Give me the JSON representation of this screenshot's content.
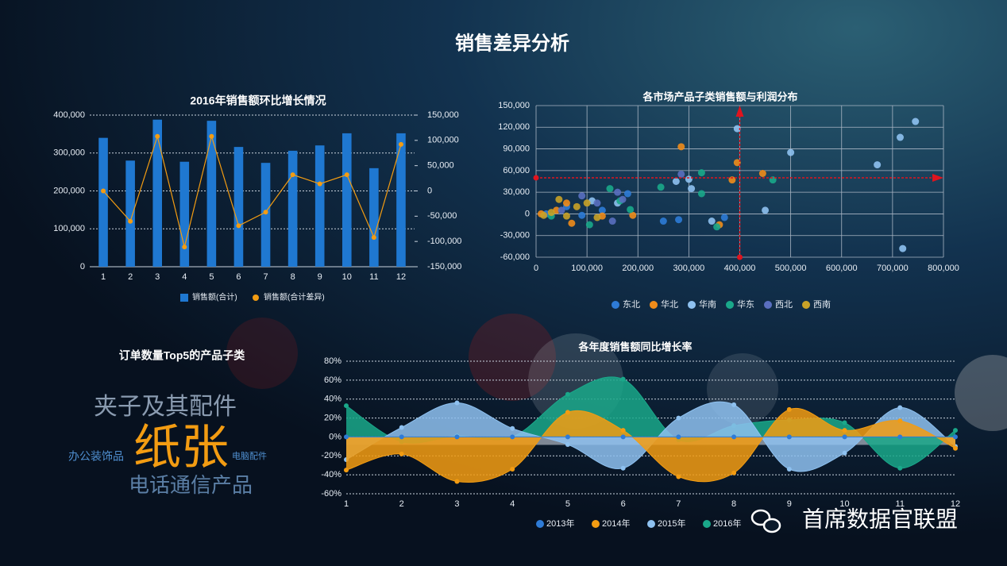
{
  "title": "销售差异分析",
  "watermark": "首席数据官联盟",
  "chart_data": [
    {
      "type": "bar-line",
      "title": "2016年销售额环比增长情况",
      "categories": [
        1,
        2,
        3,
        4,
        5,
        6,
        7,
        8,
        9,
        10,
        11,
        12
      ],
      "series": [
        {
          "name": "销售额(合计)",
          "type": "bar",
          "color": "#1f78d1",
          "values": [
            340000,
            280000,
            388000,
            277000,
            385000,
            316000,
            274000,
            306000,
            320000,
            352000,
            260000,
            352000
          ]
        },
        {
          "name": "销售额(合计差异)",
          "type": "line",
          "axis": "y2",
          "color": "#f39c12",
          "values": [
            0,
            -60000,
            108000,
            -111000,
            108000,
            -69000,
            -42000,
            32000,
            14000,
            32000,
            -92000,
            92000
          ]
        }
      ],
      "ylim": [
        0,
        400000
      ],
      "yticks": [
        0,
        {
          "value": 100000,
          "label": "100,000"
        },
        {
          "value": 200000,
          "label": "200,000"
        },
        {
          "value": 300000,
          "label": "300,000"
        },
        {
          "value": 400000,
          "label": "400,000"
        }
      ],
      "y2lim": [
        -150000,
        150000
      ],
      "y2ticks": [
        {
          "value": -150000,
          "label": "-150,000"
        },
        {
          "value": -100000,
          "label": "-100,000"
        },
        {
          "value": -50000,
          "label": "-50,000"
        },
        0,
        {
          "value": 50000,
          "label": "50,000"
        },
        {
          "value": 100000,
          "label": "100,000"
        },
        {
          "value": 150000,
          "label": "150,000"
        }
      ],
      "grid": true
    },
    {
      "type": "scatter",
      "title": "各市场产品子类销售额与利润分布",
      "series": [
        {
          "name": "东北",
          "color": "#2e7bd6",
          "x": [
            250000,
            280000,
            370000,
            130000,
            90000,
            60000,
            20000,
            180000
          ],
          "values": [
            -10000,
            -8000,
            -5000,
            5000,
            -2000,
            10000,
            0,
            28000
          ]
        },
        {
          "name": "华北",
          "color": "#f08c1a",
          "x": [
            285000,
            395000,
            445000,
            385000,
            360000,
            190000,
            130000,
            70000,
            60000,
            10000,
            40000
          ],
          "values": [
            93000,
            71000,
            56000,
            47000,
            -15000,
            -2000,
            -3000,
            -13000,
            15000,
            0,
            5000
          ]
        },
        {
          "name": "华南",
          "color": "#8ec1f0",
          "x": [
            395000,
            745000,
            715000,
            500000,
            670000,
            720000,
            450000,
            345000,
            305000,
            275000,
            160000,
            110000,
            300000
          ],
          "values": [
            118000,
            128000,
            106000,
            85000,
            68000,
            -48000,
            5000,
            -10000,
            35000,
            45000,
            15000,
            18000,
            48000
          ]
        },
        {
          "name": "华东",
          "color": "#1aa88a",
          "x": [
            465000,
            325000,
            325000,
            245000,
            145000,
            185000,
            355000,
            105000,
            30000,
            165000
          ],
          "values": [
            47000,
            57000,
            28000,
            37000,
            35000,
            6000,
            -18000,
            -15000,
            -3000,
            18000
          ]
        },
        {
          "name": "西北",
          "color": "#5a6fc0",
          "x": [
            160000,
            170000,
            150000,
            285000,
            90000,
            50000,
            120000
          ],
          "values": [
            30000,
            20000,
            -10000,
            55000,
            25000,
            5000,
            15000
          ]
        },
        {
          "name": "西南",
          "color": "#c9a227",
          "x": [
            100000,
            80000,
            30000,
            60000,
            15000,
            120000,
            45000
          ],
          "values": [
            15000,
            10000,
            2000,
            -3000,
            -2000,
            -5000,
            20000
          ]
        }
      ],
      "xlim": [
        0,
        800000
      ],
      "xticks": [
        0,
        {
          "value": 100000,
          "label": "100,000"
        },
        {
          "value": 200000,
          "label": "200,000"
        },
        {
          "value": 300000,
          "label": "300,000"
        },
        {
          "value": 400000,
          "label": "400,000"
        },
        {
          "value": 500000,
          "label": "500,000"
        },
        {
          "value": 600000,
          "label": "600,000"
        },
        {
          "value": 700000,
          "label": "700,000"
        },
        {
          "value": 800000,
          "label": "800,000"
        }
      ],
      "ylim": [
        -60000,
        150000
      ],
      "yticks": [
        {
          "value": -60000,
          "label": "-60,000"
        },
        {
          "value": -30000,
          "label": "-30,000"
        },
        0,
        {
          "value": 30000,
          "label": "30,000"
        },
        {
          "value": 60000,
          "label": "60,000"
        },
        {
          "value": 90000,
          "label": "90,000"
        },
        {
          "value": 120000,
          "label": "120,000"
        },
        {
          "value": 150000,
          "label": "150,000"
        }
      ],
      "vlines": [
        400000
      ],
      "hlines": [
        50000
      ],
      "ref_color": "#e0141e",
      "grid": true
    },
    {
      "type": "wordcloud",
      "title": "订单数量Top5的产品子类",
      "categories": [
        "夹子及其配件",
        "纸张",
        "办公装饰品",
        "电脑配件",
        "电话通信产品"
      ],
      "colors": [
        "#8a9bb0",
        "#f39c12",
        "#4f8fd0",
        "#4f8fd0",
        "#5b7fa6"
      ]
    },
    {
      "type": "area",
      "title": "各年度销售额同比增长率",
      "categories": [
        1,
        2,
        3,
        4,
        5,
        6,
        7,
        8,
        9,
        10,
        11,
        12
      ],
      "series": [
        {
          "name": "2013年",
          "color": "#2e7bd6",
          "values": [
            0,
            0,
            0,
            0,
            0,
            0,
            0,
            0,
            0,
            0,
            0,
            0
          ]
        },
        {
          "name": "2014年",
          "color": "#f39c12",
          "values": [
            -35,
            -18,
            -47,
            -34,
            26,
            7,
            -42,
            -38,
            29,
            7,
            17,
            -12
          ]
        },
        {
          "name": "2015年",
          "color": "#8ec1f0",
          "values": [
            -24,
            10,
            36,
            9,
            -8,
            -33,
            20,
            34,
            -34,
            -17,
            31,
            -10
          ]
        },
        {
          "name": "2016年",
          "color": "#1aa88a",
          "values": [
            33,
            -5,
            1,
            0,
            45,
            61,
            -3,
            12,
            18,
            15,
            -33,
            7
          ]
        }
      ],
      "ylim": [
        -60,
        80
      ],
      "yticks": [
        {
          "value": -60,
          "label": "-60%"
        },
        {
          "value": -40,
          "label": "-40%"
        },
        {
          "value": -20,
          "label": "-20%"
        },
        {
          "value": 0,
          "label": "0%"
        },
        {
          "value": 20,
          "label": "20%"
        },
        {
          "value": 40,
          "label": "40%"
        },
        {
          "value": 60,
          "label": "60%"
        },
        {
          "value": 80,
          "label": "80%"
        }
      ],
      "grid": true
    }
  ]
}
